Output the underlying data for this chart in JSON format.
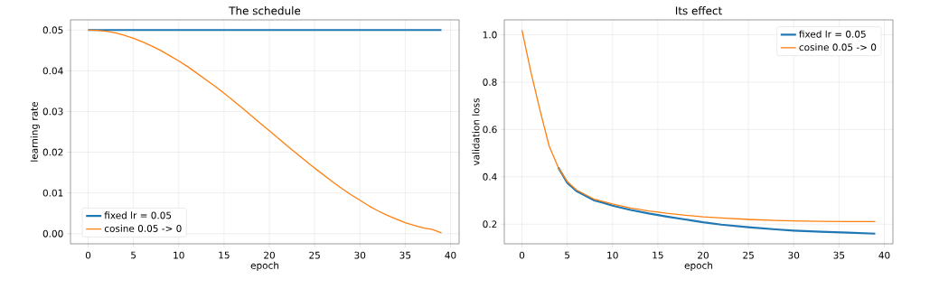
{
  "chart_data": [
    {
      "type": "line",
      "title": "The schedule",
      "xlabel": "epoch",
      "ylabel": "learning rate",
      "xlim": [
        -1.95,
        40.95
      ],
      "ylim": [
        -0.0025,
        0.0525
      ],
      "xticks": [
        0,
        5,
        10,
        15,
        20,
        25,
        30,
        35,
        40
      ],
      "yticks": [
        {
          "value": 0,
          "label": "0.00"
        },
        {
          "value": 0.01,
          "label": "0.01"
        },
        {
          "value": 0.02,
          "label": "0.02"
        },
        {
          "value": 0.03,
          "label": "0.03"
        },
        {
          "value": 0.04,
          "label": "0.04"
        },
        {
          "value": 0.05,
          "label": "0.05"
        }
      ],
      "grid": true,
      "legend": "bottom left",
      "series": [
        {
          "name": "fixed lr = 0.05",
          "color": "#1f77b4",
          "x": [
            0,
            39
          ],
          "values": [
            0.05,
            0.05
          ]
        },
        {
          "name": "cosine 0.05 -> 0",
          "color": "#ff7f0e",
          "x": [
            0,
            1,
            2,
            3,
            4,
            5,
            6,
            7,
            8,
            9,
            10,
            11,
            12,
            13,
            14,
            15,
            16,
            17,
            18,
            19,
            20,
            21,
            22,
            23,
            24,
            25,
            26,
            27,
            28,
            29,
            30,
            31,
            32,
            33,
            34,
            35,
            36,
            37,
            38,
            39
          ],
          "values": [
            0.05,
            0.0499,
            0.0497,
            0.0493,
            0.0487,
            0.048,
            0.0471,
            0.0461,
            0.045,
            0.0437,
            0.0424,
            0.041,
            0.0394,
            0.0378,
            0.0362,
            0.0345,
            0.0327,
            0.0309,
            0.029,
            0.0271,
            0.0253,
            0.0234,
            0.0215,
            0.0197,
            0.0179,
            0.0161,
            0.0144,
            0.0127,
            0.0111,
            0.0096,
            0.0082,
            0.0068,
            0.0056,
            0.0045,
            0.0036,
            0.0027,
            0.002,
            0.0014,
            0.001,
            0.0002
          ]
        }
      ]
    },
    {
      "type": "line",
      "title": "Its effect",
      "xlabel": "epoch",
      "ylabel": "validation loss",
      "xlim": [
        -1.95,
        40.95
      ],
      "ylim": [
        0.117,
        1.063
      ],
      "xticks": [
        0,
        5,
        10,
        15,
        20,
        25,
        30,
        35,
        40
      ],
      "yticks": [
        {
          "value": 0.2,
          "label": "0.2"
        },
        {
          "value": 0.4,
          "label": "0.4"
        },
        {
          "value": 0.6,
          "label": "0.6"
        },
        {
          "value": 0.8,
          "label": "0.8"
        },
        {
          "value": 1.0,
          "label": "1.0"
        }
      ],
      "grid": true,
      "legend": "top right",
      "series": [
        {
          "name": "fixed lr = 0.05",
          "color": "#1f77b4",
          "x": [
            4,
            5,
            6,
            7,
            8,
            9,
            10,
            12,
            14,
            16,
            18,
            20,
            22,
            25,
            28,
            30,
            33,
            36,
            39
          ],
          "values": [
            0.44,
            0.375,
            0.34,
            0.32,
            0.3,
            0.29,
            0.278,
            0.26,
            0.245,
            0.232,
            0.22,
            0.208,
            0.198,
            0.187,
            0.178,
            0.173,
            0.168,
            0.164,
            0.16
          ]
        },
        {
          "name": "cosine 0.05 -> 0",
          "color": "#ff7f0e",
          "x": [
            0,
            1,
            2,
            3,
            4,
            5,
            6,
            7,
            8,
            9,
            10,
            12,
            14,
            16,
            18,
            20,
            22,
            25,
            28,
            30,
            33,
            36,
            39
          ],
          "values": [
            1.02,
            0.84,
            0.68,
            0.53,
            0.44,
            0.38,
            0.345,
            0.325,
            0.305,
            0.295,
            0.285,
            0.268,
            0.256,
            0.246,
            0.238,
            0.231,
            0.226,
            0.22,
            0.216,
            0.214,
            0.212,
            0.211,
            0.211
          ]
        }
      ]
    }
  ]
}
